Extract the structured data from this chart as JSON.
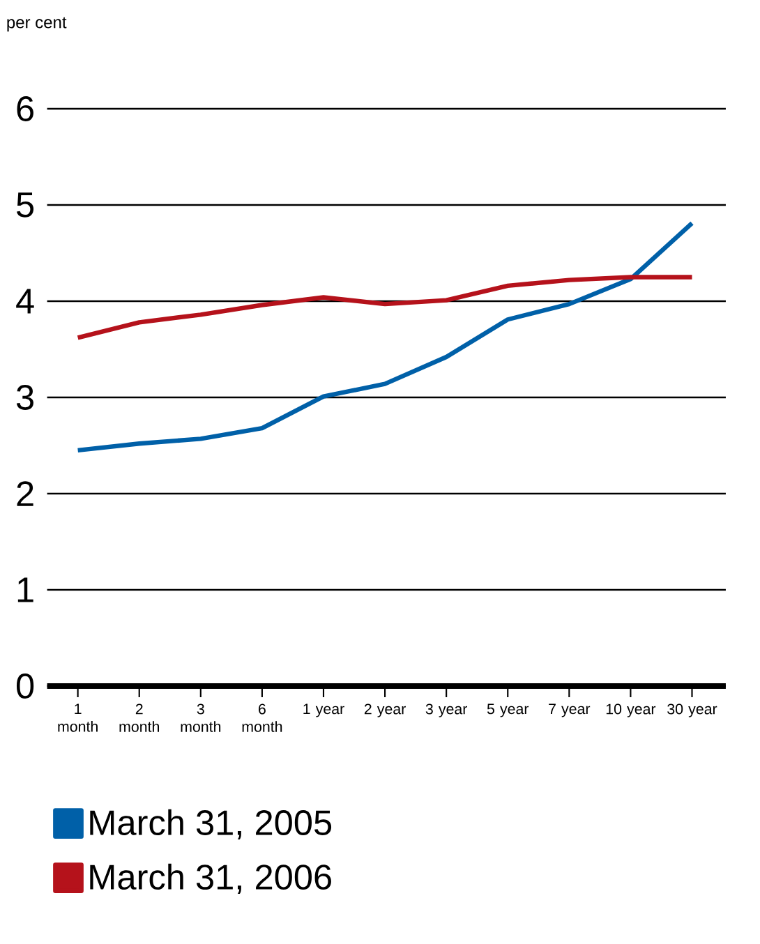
{
  "chart_data": {
    "type": "line",
    "ylabel": "per cent",
    "categories": [
      "1 month",
      "2 month",
      "3 month",
      "6 month",
      "1 year",
      "2 year",
      "3 year",
      "5 year",
      "7 year",
      "10 year",
      "30 year"
    ],
    "series": [
      {
        "name": "March 31, 2005",
        "color": "#0060a8",
        "values": [
          2.45,
          2.52,
          2.57,
          2.68,
          3.01,
          3.14,
          3.42,
          3.81,
          3.97,
          4.23,
          4.81
        ]
      },
      {
        "name": "March 31, 2006",
        "color": "#b5121b",
        "values": [
          3.62,
          3.78,
          3.86,
          3.96,
          4.04,
          3.97,
          4.01,
          4.16,
          4.22,
          4.25,
          4.25
        ]
      }
    ],
    "ylim": [
      0,
      6
    ],
    "yticks": [
      0,
      1,
      2,
      3,
      4,
      5,
      6
    ],
    "grid": "y",
    "legend": "bottom",
    "marker": "none",
    "line_style": "solid"
  }
}
